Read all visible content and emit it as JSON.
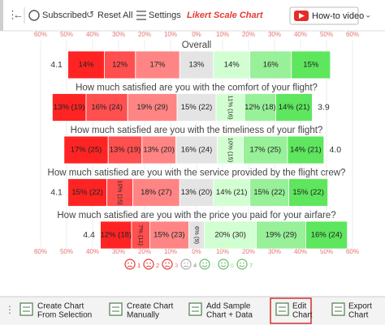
{
  "toolbar": {
    "subscribed": "Subscribed",
    "reset": "Reset All",
    "settings": "Settings",
    "app_title": "Likert Scale Chart",
    "video": "How-to video"
  },
  "chart_data": {
    "type": "likert",
    "categories": [
      "Overall",
      "How much satisfied are you with the comfort of your flight?",
      "How much satisfied are you with the timeliness of your flight?",
      "How much satisfied are you with the service provided by the flight crew?",
      "How much satisfied are you with the price you paid for your airfare?"
    ],
    "averages": [
      4.1,
      3.9,
      4.0,
      4.1,
      4.4
    ],
    "average_labels": [
      "4.1",
      "3.9",
      "4.0",
      "4.1",
      "4.4"
    ],
    "neutral_series": 3,
    "series": [
      {
        "name": "1",
        "color": "#ff2424",
        "values": [
          14,
          13,
          17,
          15,
          12
        ],
        "value_labels": [
          "14%",
          "13% (19)",
          "17% (25)",
          "15% (22)",
          "12% (18)"
        ]
      },
      {
        "name": "2",
        "color": "#ff4f4f",
        "values": [
          12,
          16,
          13,
          10,
          7
        ],
        "value_labels": [
          "12%",
          "16% (24)",
          "13% (19)",
          "10% (15)",
          "7% (11)"
        ]
      },
      {
        "name": "3",
        "color": "#ff8585",
        "values": [
          17,
          19,
          13,
          18,
          15
        ],
        "value_labels": [
          "17%",
          "19% (29)",
          "13% (20)",
          "18% (27)",
          "15% (23)"
        ]
      },
      {
        "name": "4",
        "color": "#e4e4e4",
        "values": [
          13,
          15,
          16,
          13,
          6
        ],
        "value_labels": [
          "13%",
          "15% (22)",
          "16% (24)",
          "13% (20)",
          "6% (9)"
        ]
      },
      {
        "name": "5",
        "color": "#d2ffd2",
        "values": [
          14,
          11,
          10,
          14,
          20
        ],
        "value_labels": [
          "14%",
          "11% (16)",
          "10% (15)",
          "14% (21)",
          "20% (30)"
        ]
      },
      {
        "name": "6",
        "color": "#98f098",
        "values": [
          16,
          12,
          17,
          15,
          19
        ],
        "value_labels": [
          "16%",
          "12% (18)",
          "17% (25)",
          "15% (22)",
          "19% (29)"
        ]
      },
      {
        "name": "7",
        "color": "#5ee65e",
        "values": [
          15,
          14,
          14,
          15,
          16
        ],
        "value_labels": [
          "15%",
          "14% (21)",
          "14% (21)",
          "15% (22)",
          "16% (24)"
        ]
      }
    ],
    "xlim": [
      -60,
      60
    ],
    "xticks": [
      {
        "value": -60,
        "label": "60%"
      },
      {
        "value": -50,
        "label": "50%"
      },
      {
        "value": -40,
        "label": "40%"
      },
      {
        "value": -30,
        "label": "30%"
      },
      {
        "value": -20,
        "label": "20%"
      },
      {
        "value": -10,
        "label": "10%"
      },
      {
        "value": 0,
        "label": "0%"
      },
      {
        "value": 10,
        "label": "10%"
      },
      {
        "value": 20,
        "label": "20%"
      },
      {
        "value": 30,
        "label": "30%"
      },
      {
        "value": 40,
        "label": "40%"
      },
      {
        "value": 50,
        "label": "50%"
      },
      {
        "value": 60,
        "label": "60%"
      }
    ],
    "grid": true
  },
  "ribbon": [
    {
      "lines": [
        "Create Chart",
        "From Selection"
      ]
    },
    {
      "lines": [
        "Create Chart",
        "Manually"
      ]
    },
    {
      "lines": [
        "Add Sample",
        "Chart + Data"
      ]
    },
    {
      "lines": [
        "Edit",
        "Chart"
      ]
    },
    {
      "lines": [
        "Export",
        "Chart"
      ]
    }
  ]
}
